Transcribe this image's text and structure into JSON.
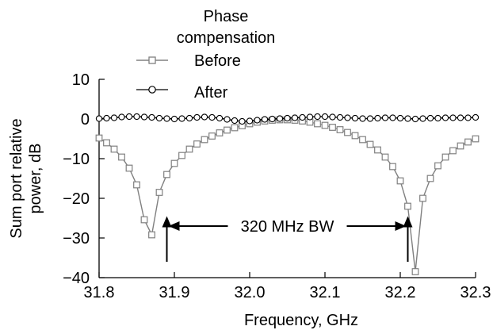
{
  "chart_data": {
    "type": "line",
    "title": "",
    "xlabel": "Frequency, GHz",
    "ylabel_lines": [
      "Sum port relative",
      "power, dB"
    ],
    "xlim": [
      31.8,
      32.3
    ],
    "ylim": [
      -40,
      10
    ],
    "xticks": [
      "31.8",
      "31.9",
      "32.0",
      "32.1",
      "32.2",
      "32.3"
    ],
    "yticks": [
      "10",
      "0",
      "−10",
      "−20",
      "−30",
      "−40"
    ],
    "grid": false,
    "legend": {
      "title_lines": [
        "Phase",
        "compensation"
      ],
      "placement": "top-left",
      "entries": [
        "Before",
        "After"
      ]
    },
    "annotation": {
      "text": "320 MHz BW",
      "x_start": 31.89,
      "x_end": 32.21
    },
    "series": [
      {
        "name": "Before",
        "marker": "square",
        "color": "#808080",
        "x": [
          31.8,
          31.81,
          31.82,
          31.83,
          31.84,
          31.85,
          31.86,
          31.87,
          31.88,
          31.89,
          31.9,
          31.91,
          31.92,
          31.93,
          31.94,
          31.95,
          31.96,
          31.97,
          31.98,
          31.99,
          32.0,
          32.01,
          32.02,
          32.03,
          32.04,
          32.05,
          32.06,
          32.07,
          32.08,
          32.09,
          32.1,
          32.11,
          32.12,
          32.13,
          32.14,
          32.15,
          32.16,
          32.17,
          32.18,
          32.19,
          32.2,
          32.21,
          32.22,
          32.23,
          32.24,
          32.25,
          32.26,
          32.27,
          32.28,
          32.29,
          32.3
        ],
        "y": [
          -4.8,
          -6.0,
          -7.6,
          -9.6,
          -12.4,
          -16.6,
          -25.4,
          -29.2,
          -18.5,
          -14.0,
          -11.2,
          -9.2,
          -7.6,
          -6.3,
          -5.2,
          -4.3,
          -3.5,
          -2.8,
          -2.2,
          -1.7,
          -1.2,
          -0.8,
          -0.5,
          -0.3,
          -0.2,
          -0.2,
          -0.3,
          -0.5,
          -0.8,
          -1.2,
          -1.6,
          -2.1,
          -2.7,
          -3.4,
          -4.2,
          -5.2,
          -6.4,
          -7.8,
          -9.6,
          -12.0,
          -15.6,
          -22.0,
          -38.5,
          -20.0,
          -15.0,
          -11.8,
          -9.6,
          -8.0,
          -6.8,
          -5.8,
          -5.0
        ]
      },
      {
        "name": "After",
        "marker": "circle",
        "color": "#000000",
        "x": [
          31.8,
          31.81,
          31.82,
          31.83,
          31.84,
          31.85,
          31.86,
          31.87,
          31.88,
          31.89,
          31.9,
          31.91,
          31.92,
          31.93,
          31.94,
          31.95,
          31.96,
          31.97,
          31.98,
          31.99,
          32.0,
          32.01,
          32.02,
          32.03,
          32.04,
          32.05,
          32.06,
          32.07,
          32.08,
          32.09,
          32.1,
          32.11,
          32.12,
          32.13,
          32.14,
          32.15,
          32.16,
          32.17,
          32.18,
          32.19,
          32.2,
          32.21,
          32.22,
          32.23,
          32.24,
          32.25,
          32.26,
          32.27,
          32.28,
          32.29,
          32.3
        ],
        "y": [
          0.1,
          0.2,
          0.3,
          0.5,
          0.6,
          0.6,
          0.5,
          0.4,
          0.2,
          0.1,
          0.0,
          0.1,
          0.2,
          0.4,
          0.5,
          0.4,
          0.2,
          -0.1,
          -0.4,
          -0.6,
          -0.5,
          -0.3,
          -0.1,
          0.0,
          0.1,
          0.2,
          0.3,
          0.4,
          0.5,
          0.6,
          0.6,
          0.5,
          0.4,
          0.3,
          0.2,
          0.1,
          0.1,
          0.2,
          0.3,
          0.3,
          0.2,
          0.1,
          0.0,
          0.1,
          0.2,
          0.2,
          0.3,
          0.3,
          0.3,
          0.3,
          0.4
        ]
      }
    ]
  }
}
